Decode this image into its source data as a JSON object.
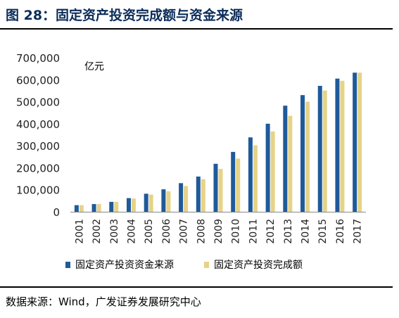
{
  "figure": {
    "title": "图 28：固定资产投资完成额与资金来源",
    "source": "数据来源：Wind，广发证券发展研究中心"
  },
  "colors": {
    "series1": "#1f5a9a",
    "series2": "#e6d388",
    "title": "#0b2c5a"
  },
  "chart_data": {
    "type": "bar",
    "unit_label": "亿元",
    "categories": [
      "2001",
      "2002",
      "2003",
      "2004",
      "2005",
      "2006",
      "2007",
      "2008",
      "2009",
      "2010",
      "2011",
      "2012",
      "2013",
      "2014",
      "2015",
      "2016",
      "2017"
    ],
    "series": [
      {
        "name": "固定资产投资资金来源",
        "values": [
          30000,
          35000,
          45000,
          62000,
          82000,
          102000,
          130000,
          160000,
          218000,
          272000,
          338000,
          400000,
          482000,
          530000,
          572000,
          605000,
          632000
        ]
      },
      {
        "name": "固定资产投资完成额",
        "values": [
          30000,
          35000,
          45000,
          60000,
          78000,
          93000,
          117000,
          148000,
          195000,
          242000,
          302000,
          365000,
          436000,
          500000,
          551000,
          595000,
          632000
        ]
      }
    ],
    "ylim": [
      0,
      700000
    ],
    "yticks": [
      "0",
      "100,000",
      "200,000",
      "300,000",
      "400,000",
      "500,000",
      "600,000",
      "700,000"
    ],
    "grid": false,
    "legend_position": "bottom"
  }
}
